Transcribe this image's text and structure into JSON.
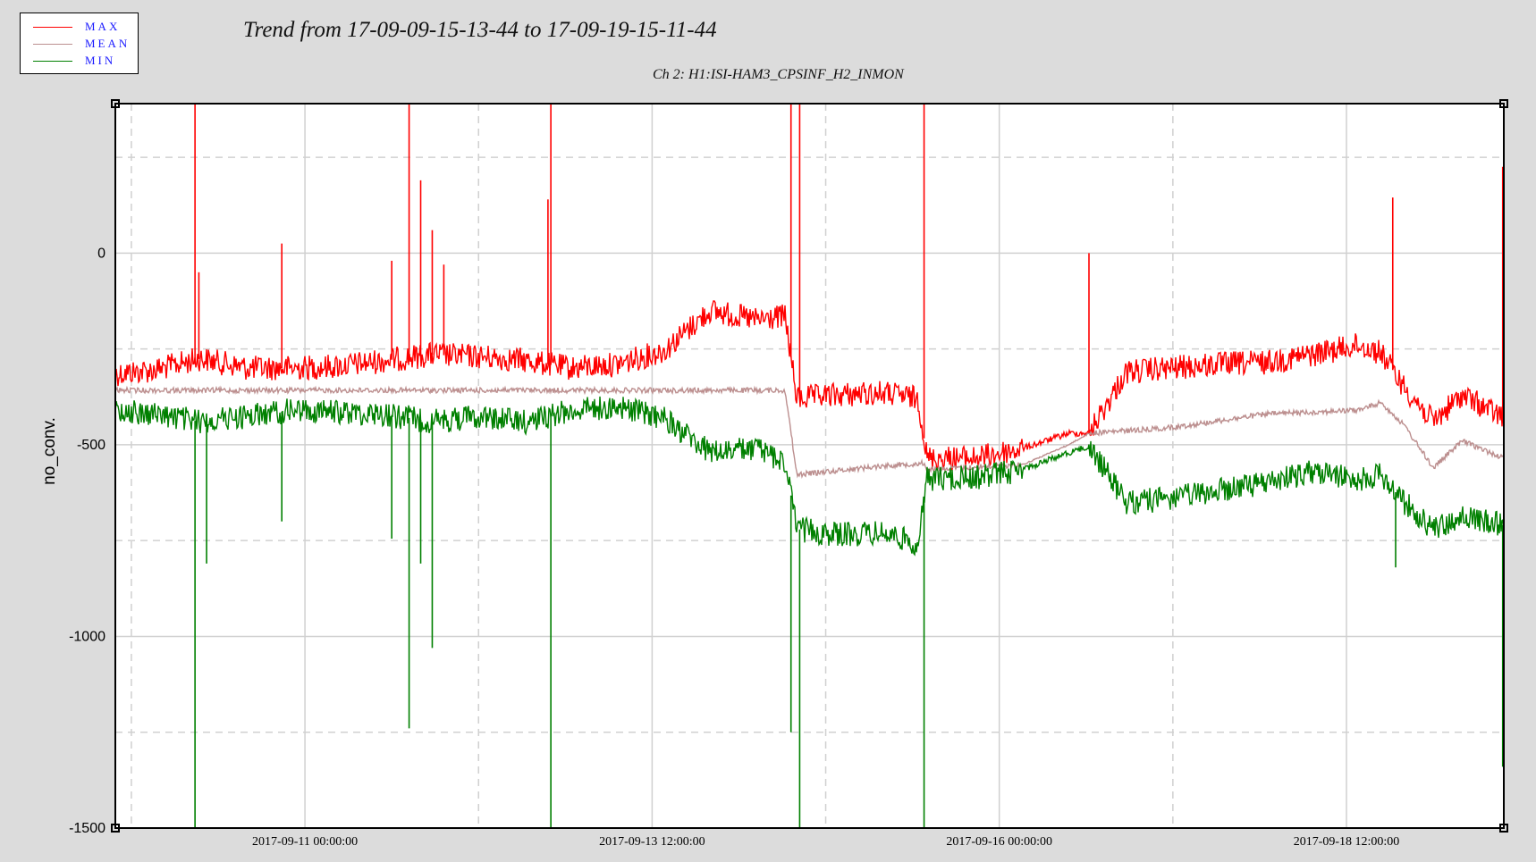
{
  "legend": {
    "items": [
      {
        "label": "MAX",
        "color": "#ff0000"
      },
      {
        "label": "MEAN",
        "color": "#bc8f8f"
      },
      {
        "label": "MIN",
        "color": "#008000"
      }
    ]
  },
  "chart_data": {
    "type": "line",
    "title": "Trend from 17-09-09-15-13-44 to 17-09-19-15-11-44",
    "subtitle": "Ch 2: H1:ISI-HAM3_CPSINF_H2_INMON",
    "ylabel": "no_conv.",
    "xlabel": "",
    "xlim": [
      "2017-09-09 15:13:44",
      "2017-09-19 15:11:44"
    ],
    "ylim": [
      -1500,
      390
    ],
    "y_ticks": [
      0,
      -500,
      -1000,
      -1500
    ],
    "x_ticks": [
      "2017-09-11 00:00:00",
      "2017-09-13 12:00:00",
      "2017-09-16 00:00:00",
      "2017-09-18 12:00:00"
    ],
    "grid": true,
    "legend_position": "top-left",
    "series": [
      {
        "name": "MAX",
        "color": "#ff0000",
        "x": [
          "2017-09-09 15:13",
          "2017-09-09 22:00",
          "2017-09-10 06:00",
          "2017-09-10 14:00",
          "2017-09-10 22:00",
          "2017-09-11 06:00",
          "2017-09-11 14:00",
          "2017-09-11 22:00",
          "2017-09-12 06:00",
          "2017-09-12 14:00",
          "2017-09-12 22:00",
          "2017-09-13 06:00",
          "2017-09-13 14:00",
          "2017-09-13 22:00",
          "2017-09-14 06:00",
          "2017-09-14 11:00",
          "2017-09-14 13:00",
          "2017-09-14 20:00",
          "2017-09-15 04:00",
          "2017-09-15 10:00",
          "2017-09-15 11:30",
          "2017-09-15 20:00",
          "2017-09-16 04:00",
          "2017-09-16 12:00",
          "2017-09-16 15:30",
          "2017-09-16 22:00",
          "2017-09-17 06:00",
          "2017-09-17 14:00",
          "2017-09-17 22:00",
          "2017-09-18 06:00",
          "2017-09-18 14:00",
          "2017-09-18 18:00",
          "2017-09-18 22:00",
          "2017-09-19 03:00",
          "2017-09-19 08:00",
          "2017-09-19 15:11"
        ],
        "y": [
          -315,
          -305,
          -275,
          -300,
          -300,
          -295,
          -280,
          -265,
          -270,
          -280,
          -300,
          -290,
          -255,
          -150,
          -175,
          -165,
          -380,
          -370,
          -365,
          -380,
          -535,
          -535,
          -510,
          -470,
          -470,
          -310,
          -300,
          -290,
          -285,
          -265,
          -240,
          -260,
          -350,
          -440,
          -370,
          -430
        ]
      },
      {
        "name": "MEAN",
        "color": "#bc8f8f",
        "x": [
          "2017-09-09 15:13",
          "2017-09-10 14:00",
          "2017-09-11 14:00",
          "2017-09-12 14:00",
          "2017-09-13 14:00",
          "2017-09-14 11:00",
          "2017-09-14 13:00",
          "2017-09-15 04:00",
          "2017-09-15 11:00",
          "2017-09-15 11:30",
          "2017-09-16 04:00",
          "2017-09-16 12:00",
          "2017-09-16 15:30",
          "2017-09-17 06:00",
          "2017-09-17 22:00",
          "2017-09-18 14:00",
          "2017-09-18 18:00",
          "2017-09-18 22:00",
          "2017-09-19 03:00",
          "2017-09-19 08:00",
          "2017-09-19 15:11"
        ],
        "y": [
          -358,
          -358,
          -358,
          -358,
          -358,
          -358,
          -578,
          -555,
          -548,
          -565,
          -552,
          -500,
          -470,
          -455,
          -420,
          -410,
          -390,
          -450,
          -560,
          -490,
          -535
        ]
      },
      {
        "name": "MIN",
        "color": "#008000",
        "x": [
          "2017-09-09 15:13",
          "2017-09-09 22:00",
          "2017-09-10 06:00",
          "2017-09-10 14:00",
          "2017-09-10 22:00",
          "2017-09-11 06:00",
          "2017-09-11 14:00",
          "2017-09-11 22:00",
          "2017-09-12 06:00",
          "2017-09-12 14:00",
          "2017-09-12 22:00",
          "2017-09-13 06:00",
          "2017-09-13 14:00",
          "2017-09-13 22:00",
          "2017-09-14 06:00",
          "2017-09-14 11:00",
          "2017-09-14 13:00",
          "2017-09-14 20:00",
          "2017-09-15 04:00",
          "2017-09-15 10:00",
          "2017-09-15 11:30",
          "2017-09-15 20:00",
          "2017-09-16 04:00",
          "2017-09-16 12:00",
          "2017-09-16 15:30",
          "2017-09-16 22:00",
          "2017-09-17 06:00",
          "2017-09-17 14:00",
          "2017-09-17 22:00",
          "2017-09-18 06:00",
          "2017-09-18 14:00",
          "2017-09-18 18:00",
          "2017-09-18 22:00",
          "2017-09-19 03:00",
          "2017-09-19 08:00",
          "2017-09-19 15:11"
        ],
        "y": [
          -410,
          -420,
          -440,
          -425,
          -410,
          -415,
          -420,
          -440,
          -425,
          -440,
          -410,
          -400,
          -430,
          -520,
          -510,
          -545,
          -720,
          -735,
          -730,
          -760,
          -590,
          -585,
          -565,
          -520,
          -505,
          -650,
          -640,
          -620,
          -600,
          -570,
          -590,
          -580,
          -650,
          -720,
          -690,
          -710
        ]
      }
    ],
    "spikes": [
      {
        "series": "MAX",
        "x": "2017-09-10 05:00",
        "y": 390
      },
      {
        "series": "MAX",
        "x": "2017-09-10 05:40",
        "y": -50
      },
      {
        "series": "MAX",
        "x": "2017-09-10 20:00",
        "y": 25
      },
      {
        "series": "MAX",
        "x": "2017-09-11 15:00",
        "y": -20
      },
      {
        "series": "MAX",
        "x": "2017-09-11 18:00",
        "y": 390
      },
      {
        "series": "MAX",
        "x": "2017-09-11 20:00",
        "y": 190
      },
      {
        "series": "MAX",
        "x": "2017-09-11 22:00",
        "y": 60
      },
      {
        "series": "MAX",
        "x": "2017-09-12 00:00",
        "y": -30
      },
      {
        "series": "MAX",
        "x": "2017-09-12 18:00",
        "y": 140
      },
      {
        "series": "MAX",
        "x": "2017-09-12 18:30",
        "y": 390
      },
      {
        "series": "MAX",
        "x": "2017-09-14 12:00",
        "y": 390
      },
      {
        "series": "MAX",
        "x": "2017-09-14 13:30",
        "y": 390
      },
      {
        "series": "MAX",
        "x": "2017-09-15 11:00",
        "y": 390
      },
      {
        "series": "MAX",
        "x": "2017-09-16 15:30",
        "y": 0
      },
      {
        "series": "MAX",
        "x": "2017-09-18 20:00",
        "y": 145
      },
      {
        "series": "MAX",
        "x": "2017-09-19 15:00",
        "y": 225
      },
      {
        "series": "MIN",
        "x": "2017-09-10 05:00",
        "y": -1500
      },
      {
        "series": "MIN",
        "x": "2017-09-10 07:00",
        "y": -810
      },
      {
        "series": "MIN",
        "x": "2017-09-10 20:00",
        "y": -700
      },
      {
        "series": "MIN",
        "x": "2017-09-11 15:00",
        "y": -745
      },
      {
        "series": "MIN",
        "x": "2017-09-11 18:00",
        "y": -1240
      },
      {
        "series": "MIN",
        "x": "2017-09-11 20:00",
        "y": -810
      },
      {
        "series": "MIN",
        "x": "2017-09-11 22:00",
        "y": -1030
      },
      {
        "series": "MIN",
        "x": "2017-09-12 18:30",
        "y": -1500
      },
      {
        "series": "MIN",
        "x": "2017-09-14 12:00",
        "y": -1250
      },
      {
        "series": "MIN",
        "x": "2017-09-14 13:30",
        "y": -1500
      },
      {
        "series": "MIN",
        "x": "2017-09-15 11:00",
        "y": -1500
      },
      {
        "series": "MIN",
        "x": "2017-09-18 20:30",
        "y": -820
      },
      {
        "series": "MIN",
        "x": "2017-09-19 15:00",
        "y": -1340
      }
    ]
  }
}
